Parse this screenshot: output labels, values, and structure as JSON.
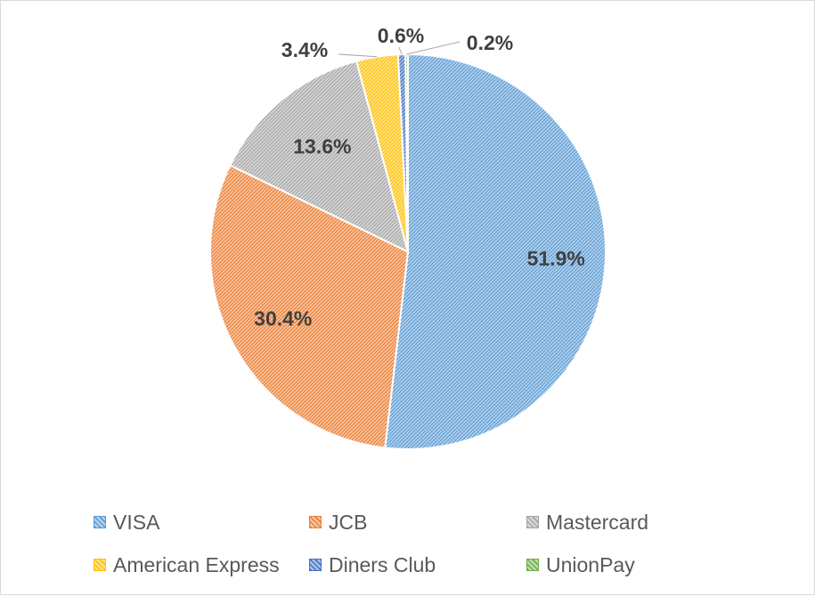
{
  "chart_data": {
    "type": "pie",
    "title": "",
    "categories": [
      "VISA",
      "JCB",
      "Mastercard",
      "American Express",
      "Diners Club",
      "UnionPay"
    ],
    "values": [
      51.9,
      30.4,
      13.6,
      3.4,
      0.6,
      0.2
    ],
    "data_labels": [
      "51.9%",
      "30.4%",
      "13.6%",
      "3.4%",
      "0.6%",
      "0.2%"
    ],
    "colors": [
      "#5b9bd5",
      "#ed7d31",
      "#a5a5a5",
      "#ffc000",
      "#4472c4",
      "#70ad47"
    ],
    "fill_style": "hatched",
    "legend_position": "bottom"
  }
}
